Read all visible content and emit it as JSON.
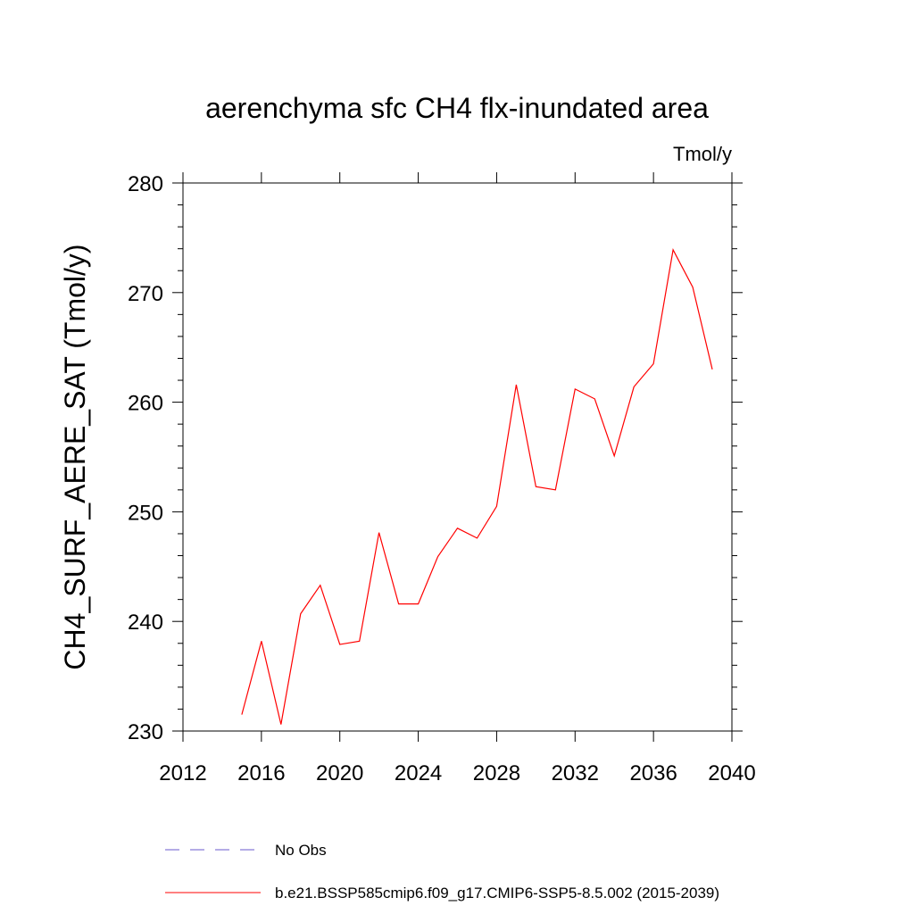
{
  "chart_data": {
    "type": "line",
    "title": "aerenchyma sfc CH4 flx-inundated area",
    "units_label": "Tmol/y",
    "ylabel": "CH4_SURF_AERE_SAT  (Tmol/y)",
    "xlabel": "",
    "xlim": [
      2012,
      2040
    ],
    "ylim": [
      230,
      280
    ],
    "x_ticks": [
      2012,
      2016,
      2020,
      2024,
      2028,
      2032,
      2036,
      2040
    ],
    "x_tick_labels": [
      "2012",
      "2016",
      "2020",
      "2024",
      "2028",
      "2032",
      "2036",
      "2040"
    ],
    "y_ticks": [
      230,
      240,
      250,
      260,
      270,
      280
    ],
    "y_tick_labels": [
      "230",
      "240",
      "250",
      "260",
      "270",
      "280"
    ],
    "grid": false,
    "legend_position": "bottom",
    "legend": [
      {
        "name": "No Obs",
        "color": "#6a5acd",
        "style": "dashed"
      },
      {
        "name": "b.e21.BSSP585cmip6.f09_g17.CMIP6-SSP5-8.5.002 (2015-2039)",
        "color": "#ff0000",
        "style": "solid"
      }
    ],
    "series": [
      {
        "name": "b.e21.BSSP585cmip6.f09_g17.CMIP6-SSP5-8.5.002 (2015-2039)",
        "color": "#ff0000",
        "x": [
          2015,
          2016,
          2017,
          2018,
          2019,
          2020,
          2021,
          2022,
          2023,
          2024,
          2025,
          2026,
          2027,
          2028,
          2029,
          2030,
          2031,
          2032,
          2033,
          2034,
          2035,
          2036,
          2037,
          2038,
          2039
        ],
        "values": [
          231.5,
          238.2,
          230.6,
          240.7,
          243.3,
          237.9,
          238.2,
          248.1,
          241.6,
          241.6,
          245.9,
          248.5,
          247.6,
          250.5,
          261.6,
          252.3,
          252.0,
          261.2,
          260.3,
          255.1,
          261.4,
          263.5,
          273.9,
          270.5,
          263.0
        ]
      }
    ]
  }
}
